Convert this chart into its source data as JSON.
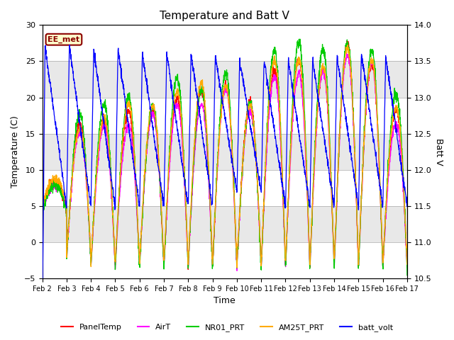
{
  "title": "Temperature and Batt V",
  "xlabel": "Time",
  "ylabel_left": "Temperature (C)",
  "ylabel_right": "Batt V",
  "ylim_left": [
    -5,
    30
  ],
  "ylim_right": [
    10.5,
    14.0
  ],
  "annotation_text": "EE_met",
  "xtick_labels": [
    "Feb 2",
    "Feb 3",
    "Feb 4",
    "Feb 5",
    "Feb 6",
    "Feb 7",
    "Feb 8",
    "Feb 9",
    "Feb 10",
    "Feb 11",
    "Feb 12",
    "Feb 13",
    "Feb 14",
    "Feb 15",
    "Feb 16",
    "Feb 17"
  ],
  "legend_entries": [
    "PanelTemp",
    "AirT",
    "NR01_PRT",
    "AM25T_PRT",
    "batt_volt"
  ],
  "legend_colors": [
    "#ff0000",
    "#ff00ff",
    "#00cc00",
    "#ffaa00",
    "#0000ff"
  ],
  "panel_temp_color": "#ff0000",
  "air_t_color": "#ff00ff",
  "nr01_color": "#00cc00",
  "am25t_color": "#ffaa00",
  "batt_volt_color": "#0000ff",
  "bg_light": "#e8e8e8",
  "bg_dark": "#d0d0d0",
  "grid_color": "#ffffff",
  "fig_bg": "#ffffff",
  "num_days": 15,
  "pts_per_day": 144
}
